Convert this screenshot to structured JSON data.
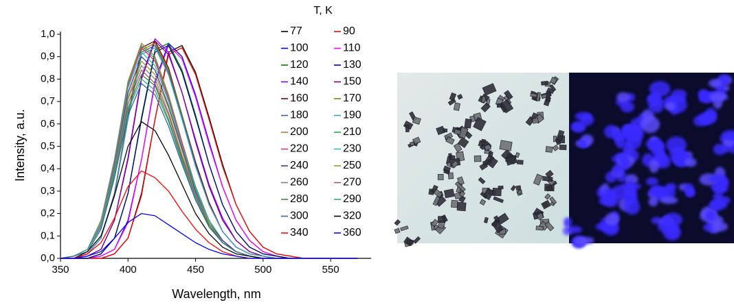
{
  "chart_data": {
    "type": "line",
    "xlabel": "Wavelength, nm",
    "ylabel": "Intensity, a.u.",
    "legend_title": "T, K",
    "xlim": [
      350,
      580
    ],
    "ylim": [
      0,
      1.0
    ],
    "xticks": [
      350,
      400,
      450,
      500,
      550
    ],
    "yticks": [
      {
        "value": 0,
        "label": "0,0"
      },
      {
        "value": 0.1,
        "label": "0,1"
      },
      {
        "value": 0.2,
        "label": "0,2"
      },
      {
        "value": 0.3,
        "label": "0,3"
      },
      {
        "value": 0.4,
        "label": "0,4"
      },
      {
        "value": 0.5,
        "label": "0,5"
      },
      {
        "value": 0.6,
        "label": "0,6"
      },
      {
        "value": 0.7,
        "label": "0,7"
      },
      {
        "value": 0.8,
        "label": "0,8"
      },
      {
        "value": 0.9,
        "label": "0,9"
      },
      {
        "value": 1.0,
        "label": "1,0"
      }
    ],
    "x": [
      350,
      360,
      370,
      380,
      390,
      400,
      410,
      420,
      430,
      440,
      450,
      460,
      470,
      480,
      490,
      500,
      510,
      520,
      530,
      540,
      550,
      560,
      570
    ],
    "series": [
      {
        "name": "77",
        "color": "#000000",
        "values": [
          0,
          0,
          0,
          0,
          0.02,
          0.09,
          0.29,
          0.62,
          0.92,
          0.95,
          0.83,
          0.63,
          0.42,
          0.24,
          0.12,
          0.05,
          0.02,
          0.01,
          0,
          0,
          0,
          0,
          0
        ]
      },
      {
        "name": "90",
        "color": "#ff0000",
        "values": [
          0,
          0,
          0,
          0,
          0.02,
          0.09,
          0.28,
          0.62,
          0.91,
          0.94,
          0.82,
          0.62,
          0.41,
          0.24,
          0.12,
          0.05,
          0.02,
          0.01,
          0,
          0,
          0,
          0,
          0
        ]
      },
      {
        "name": "100",
        "color": "#0000ff",
        "values": [
          0,
          0,
          0,
          0.01,
          0.04,
          0.17,
          0.44,
          0.79,
          0.96,
          0.9,
          0.73,
          0.52,
          0.32,
          0.17,
          0.08,
          0.03,
          0.01,
          0,
          0,
          0,
          0,
          0,
          0
        ]
      },
      {
        "name": "110",
        "color": "#ff00ff",
        "values": [
          0,
          0,
          0,
          0.01,
          0.04,
          0.16,
          0.44,
          0.78,
          0.95,
          0.89,
          0.72,
          0.51,
          0.32,
          0.17,
          0.08,
          0.03,
          0.01,
          0,
          0,
          0,
          0,
          0,
          0
        ]
      },
      {
        "name": "120",
        "color": "#008000",
        "values": [
          0,
          0,
          0,
          0.02,
          0.09,
          0.29,
          0.63,
          0.93,
          0.96,
          0.84,
          0.64,
          0.42,
          0.24,
          0.12,
          0.05,
          0.02,
          0.01,
          0,
          0,
          0,
          0,
          0,
          0
        ]
      },
      {
        "name": "130",
        "color": "#000080",
        "values": [
          0,
          0,
          0,
          0.02,
          0.09,
          0.29,
          0.62,
          0.92,
          0.95,
          0.83,
          0.63,
          0.42,
          0.24,
          0.12,
          0.05,
          0.02,
          0.01,
          0,
          0,
          0,
          0,
          0,
          0
        ]
      },
      {
        "name": "140",
        "color": "#8000ff",
        "values": [
          0,
          0,
          0.01,
          0.04,
          0.17,
          0.45,
          0.81,
          0.98,
          0.92,
          0.74,
          0.53,
          0.33,
          0.18,
          0.08,
          0.03,
          0.01,
          0,
          0,
          0,
          0,
          0,
          0,
          0
        ]
      },
      {
        "name": "150",
        "color": "#800080",
        "values": [
          0,
          0,
          0.01,
          0.04,
          0.17,
          0.44,
          0.8,
          0.97,
          0.91,
          0.74,
          0.52,
          0.32,
          0.17,
          0.08,
          0.03,
          0.01,
          0,
          0,
          0,
          0,
          0,
          0,
          0
        ]
      },
      {
        "name": "160",
        "color": "#800000",
        "values": [
          0,
          0,
          0.02,
          0.09,
          0.29,
          0.64,
          0.94,
          0.97,
          0.85,
          0.64,
          0.43,
          0.25,
          0.12,
          0.05,
          0.02,
          0.01,
          0,
          0,
          0,
          0,
          0,
          0,
          0
        ]
      },
      {
        "name": "170",
        "color": "#808000",
        "values": [
          0,
          0,
          0.02,
          0.09,
          0.29,
          0.63,
          0.93,
          0.96,
          0.84,
          0.64,
          0.42,
          0.24,
          0.12,
          0.05,
          0.02,
          0.01,
          0,
          0,
          0,
          0,
          0,
          0,
          0
        ]
      },
      {
        "name": "180",
        "color": "#2f5f9f",
        "values": [
          0,
          0,
          0.02,
          0.09,
          0.29,
          0.62,
          0.92,
          0.95,
          0.83,
          0.63,
          0.42,
          0.24,
          0.12,
          0.05,
          0.02,
          0.01,
          0,
          0,
          0,
          0,
          0,
          0,
          0
        ]
      },
      {
        "name": "190",
        "color": "#3b9cc4",
        "values": [
          0,
          0,
          0.02,
          0.09,
          0.28,
          0.62,
          0.91,
          0.94,
          0.82,
          0.62,
          0.41,
          0.24,
          0.12,
          0.05,
          0.02,
          0.01,
          0,
          0,
          0,
          0,
          0,
          0,
          0
        ]
      },
      {
        "name": "200",
        "color": "#b8763c",
        "values": [
          0,
          0.01,
          0.04,
          0.17,
          0.44,
          0.79,
          0.96,
          0.9,
          0.73,
          0.52,
          0.32,
          0.17,
          0.08,
          0.03,
          0.01,
          0,
          0,
          0,
          0,
          0,
          0,
          0,
          0
        ]
      },
      {
        "name": "210",
        "color": "#1fb04a",
        "values": [
          0,
          0.01,
          0.04,
          0.16,
          0.44,
          0.78,
          0.95,
          0.89,
          0.72,
          0.51,
          0.32,
          0.17,
          0.08,
          0.03,
          0.01,
          0,
          0,
          0,
          0,
          0,
          0,
          0,
          0
        ]
      },
      {
        "name": "220",
        "color": "#d6338f",
        "values": [
          0,
          0.01,
          0.04,
          0.16,
          0.43,
          0.77,
          0.94,
          0.88,
          0.71,
          0.51,
          0.31,
          0.17,
          0.08,
          0.03,
          0.01,
          0,
          0,
          0,
          0,
          0,
          0,
          0,
          0
        ]
      },
      {
        "name": "230",
        "color": "#36b8c4",
        "values": [
          0,
          0.01,
          0.04,
          0.16,
          0.42,
          0.76,
          0.92,
          0.86,
          0.7,
          0.5,
          0.31,
          0.17,
          0.08,
          0.03,
          0.01,
          0,
          0,
          0,
          0,
          0,
          0,
          0,
          0
        ]
      },
      {
        "name": "240",
        "color": "#40407f",
        "values": [
          0,
          0.01,
          0.04,
          0.15,
          0.41,
          0.74,
          0.9,
          0.84,
          0.68,
          0.49,
          0.3,
          0.16,
          0.08,
          0.03,
          0.01,
          0,
          0,
          0,
          0,
          0,
          0,
          0,
          0
        ]
      },
      {
        "name": "250",
        "color": "#9a9a2e",
        "values": [
          0,
          0.01,
          0.04,
          0.15,
          0.4,
          0.72,
          0.88,
          0.82,
          0.67,
          0.48,
          0.29,
          0.16,
          0.07,
          0.03,
          0.01,
          0,
          0,
          0,
          0,
          0,
          0,
          0,
          0
        ]
      },
      {
        "name": "260",
        "color": "#808080",
        "values": [
          0,
          0.01,
          0.04,
          0.15,
          0.39,
          0.71,
          0.86,
          0.8,
          0.65,
          0.46,
          0.29,
          0.15,
          0.07,
          0.03,
          0.01,
          0,
          0,
          0,
          0,
          0,
          0,
          0,
          0
        ]
      },
      {
        "name": "270",
        "color": "#9a6060",
        "values": [
          0,
          0.01,
          0.04,
          0.14,
          0.38,
          0.69,
          0.84,
          0.78,
          0.64,
          0.45,
          0.28,
          0.15,
          0.07,
          0.03,
          0.01,
          0,
          0,
          0,
          0,
          0,
          0,
          0,
          0
        ]
      },
      {
        "name": "280",
        "color": "#3f8a3f",
        "values": [
          0,
          0.01,
          0.04,
          0.14,
          0.38,
          0.67,
          0.82,
          0.77,
          0.62,
          0.44,
          0.27,
          0.15,
          0.07,
          0.03,
          0.01,
          0,
          0,
          0,
          0,
          0,
          0,
          0,
          0
        ]
      },
      {
        "name": "290",
        "color": "#3fa0a0",
        "values": [
          0,
          0.01,
          0.04,
          0.14,
          0.37,
          0.66,
          0.8,
          0.75,
          0.61,
          0.43,
          0.27,
          0.14,
          0.07,
          0.03,
          0.01,
          0,
          0,
          0,
          0,
          0,
          0,
          0,
          0
        ]
      },
      {
        "name": "300",
        "color": "#36689a",
        "values": [
          0,
          0.01,
          0.03,
          0.13,
          0.36,
          0.64,
          0.78,
          0.73,
          0.59,
          0.42,
          0.26,
          0.14,
          0.07,
          0.03,
          0.01,
          0,
          0,
          0,
          0,
          0,
          0,
          0,
          0
        ]
      },
      {
        "name": "320",
        "color": "#000000",
        "values": [
          0,
          0,
          0.03,
          0.1,
          0.28,
          0.5,
          0.61,
          0.57,
          0.46,
          0.33,
          0.2,
          0.11,
          0.05,
          0.02,
          0.01,
          0,
          0,
          0,
          0,
          0,
          0,
          0,
          0
        ]
      },
      {
        "name": "340",
        "color": "#ff0000",
        "values": [
          0,
          0,
          0.02,
          0.07,
          0.18,
          0.32,
          0.39,
          0.36,
          0.3,
          0.21,
          0.13,
          0.07,
          0.03,
          0.01,
          0,
          0,
          0,
          0,
          0,
          0,
          0,
          0,
          0
        ]
      },
      {
        "name": "360",
        "color": "#0000ff",
        "values": [
          0,
          0,
          0.01,
          0.03,
          0.09,
          0.16,
          0.2,
          0.19,
          0.15,
          0.11,
          0.07,
          0.04,
          0.02,
          0.01,
          0,
          0,
          0,
          0,
          0,
          0,
          0,
          0,
          0
        ]
      }
    ]
  }
}
